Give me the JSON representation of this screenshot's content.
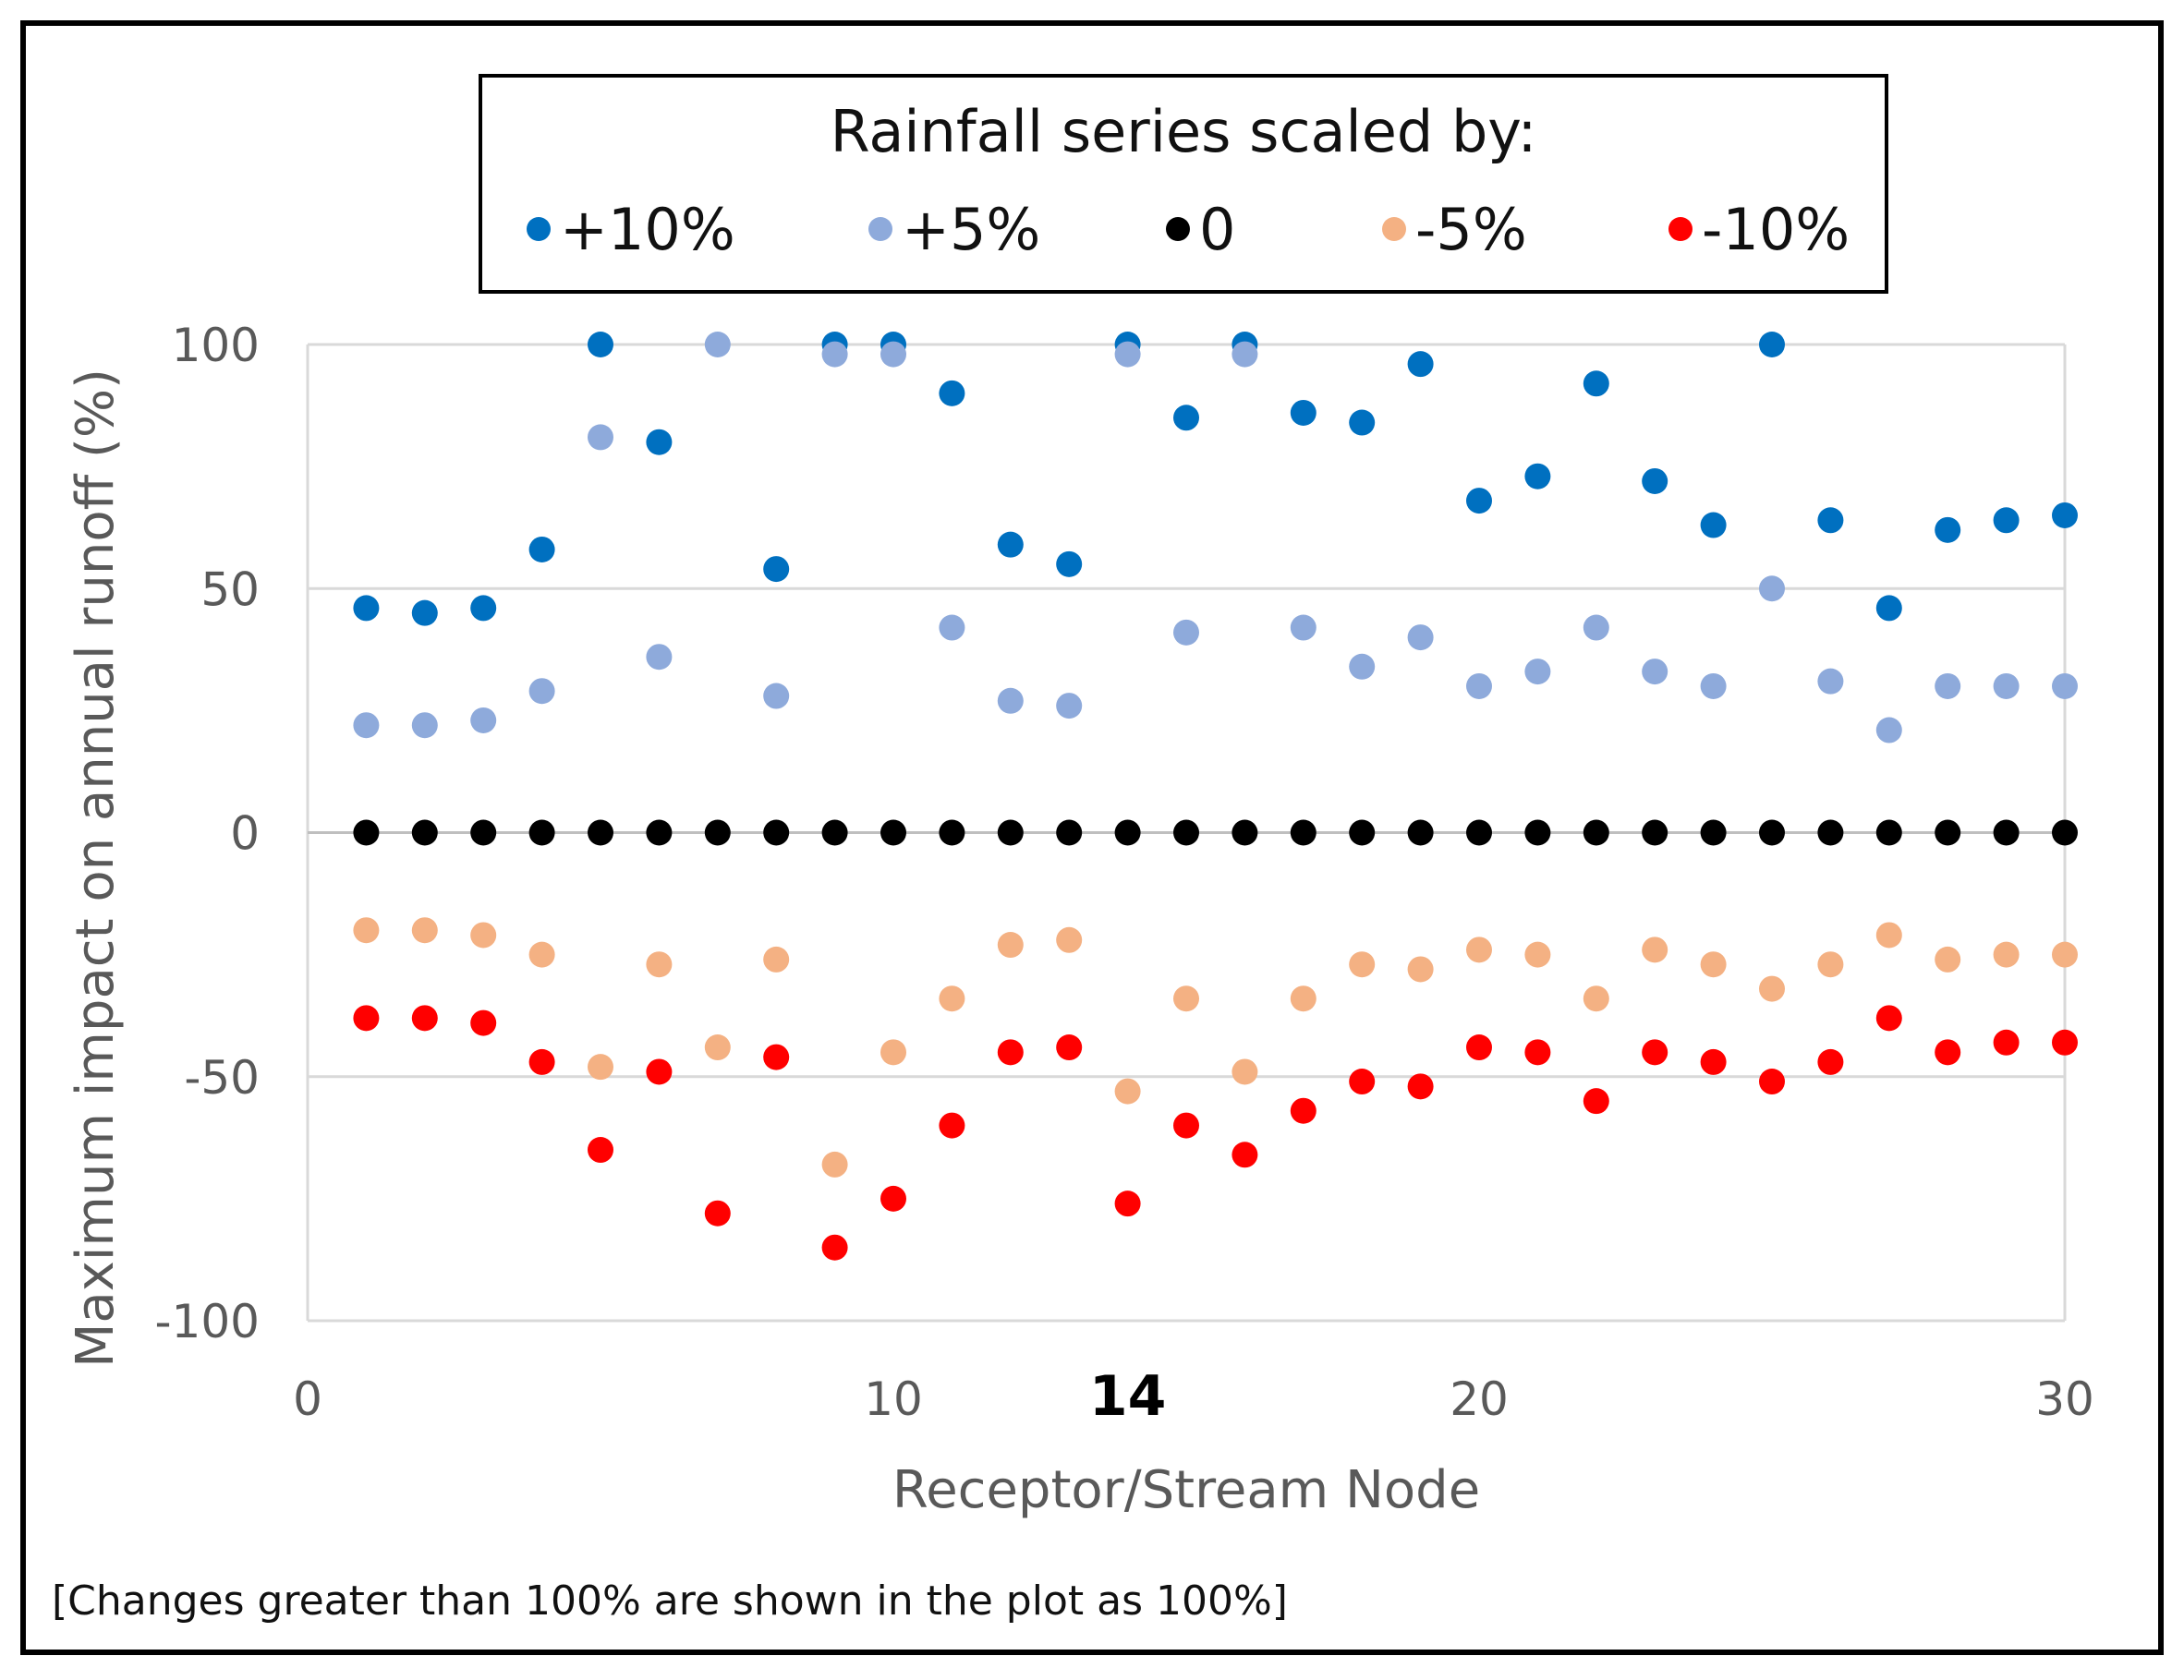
{
  "chart_data": {
    "type": "scatter",
    "legend_title": "Rainfall series scaled by:",
    "xlabel": "Receptor/Stream Node",
    "ylabel": "Maximum impact on annual runoff (%)",
    "xlim": [
      0,
      30
    ],
    "ylim": [
      -100,
      100
    ],
    "x_ticks": [
      "0",
      "10",
      "14",
      "20",
      "30"
    ],
    "x_tick_values": [
      0,
      10,
      14,
      20,
      30
    ],
    "y_ticks": [
      "100",
      "50",
      "0",
      "-50",
      "-100"
    ],
    "y_tick_values": [
      100,
      50,
      0,
      -50,
      -100
    ],
    "gridlines": "horizontal",
    "footnote": "[Changes greater than 100%  are shown in the plot as 100%]",
    "x": [
      1,
      2,
      3,
      4,
      5,
      6,
      7,
      8,
      9,
      10,
      11,
      12,
      13,
      14,
      15,
      16,
      17,
      18,
      19,
      20,
      21,
      22,
      23,
      24,
      25,
      26,
      27,
      28,
      29,
      30
    ],
    "series": [
      {
        "name": "+10%",
        "color": "#0070c0",
        "values": [
          46,
          45,
          46,
          58,
          100,
          80,
          null,
          54,
          100,
          100,
          90,
          59,
          55,
          100,
          85,
          100,
          86,
          84,
          96,
          68,
          73,
          92,
          72,
          63,
          100,
          64,
          46,
          62,
          64,
          65
        ]
      },
      {
        "name": "+5%",
        "color": "#8eaadb",
        "values": [
          22,
          22,
          23,
          29,
          81,
          36,
          100,
          28,
          98,
          98,
          42,
          27,
          26,
          98,
          41,
          98,
          42,
          34,
          40,
          30,
          33,
          42,
          33,
          30,
          50,
          31,
          21,
          30,
          30,
          30
        ]
      },
      {
        "name": "0",
        "color": "#000000",
        "values": [
          0,
          0,
          0,
          0,
          0,
          0,
          0,
          0,
          0,
          0,
          0,
          0,
          0,
          0,
          0,
          0,
          0,
          0,
          0,
          0,
          0,
          0,
          0,
          0,
          0,
          0,
          0,
          0,
          0,
          0
        ]
      },
      {
        "name": "-5%",
        "color": "#f4b183",
        "values": [
          -20,
          -20,
          -21,
          -25,
          -48,
          -27,
          -44,
          -26,
          -68,
          -45,
          -34,
          -23,
          -22,
          -53,
          -34,
          -49,
          -34,
          -27,
          -28,
          -24,
          -25,
          -34,
          -24,
          -27,
          -32,
          -27,
          -21,
          -26,
          -25,
          -25
        ]
      },
      {
        "name": "-10%",
        "color": "#ff0000",
        "values": [
          -38,
          -38,
          -39,
          -47,
          -65,
          -49,
          -78,
          -46,
          -85,
          -75,
          -60,
          -45,
          -44,
          -76,
          -60,
          -66,
          -57,
          -51,
          -52,
          -44,
          -45,
          -55,
          -45,
          -47,
          -51,
          -47,
          -38,
          -45,
          -43,
          -43
        ]
      }
    ]
  }
}
